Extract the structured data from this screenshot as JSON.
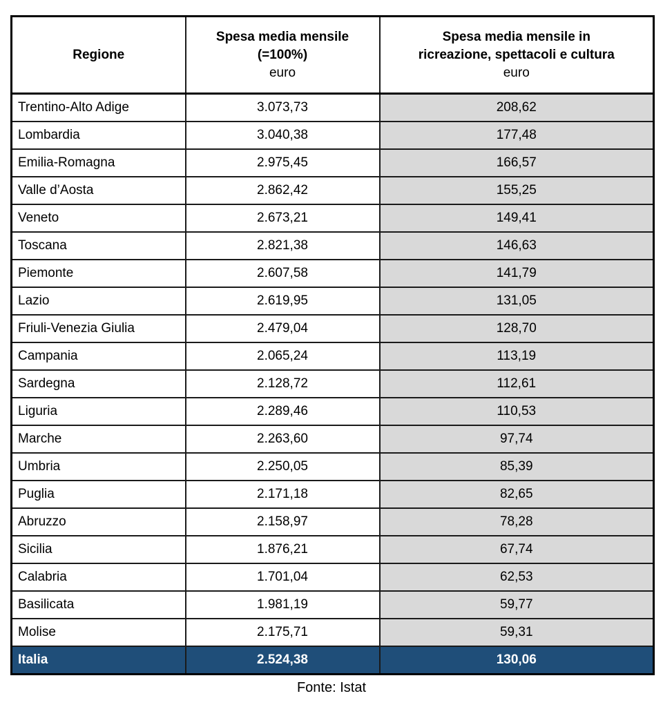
{
  "chart_data": {
    "type": "table",
    "title": "",
    "columns": [
      "Regione",
      "Spesa media mensile (=100%) euro",
      "Spesa media mensile in ricreazione, spettacoli e cultura euro"
    ],
    "header": {
      "col1": "Regione",
      "col2_line1": "Spesa media mensile",
      "col2_line2": "(=100%)",
      "col2_unit": "euro",
      "col3_line1": "Spesa media mensile in",
      "col3_line2": "ricreazione, spettacoli e cultura",
      "col3_unit": "euro"
    },
    "rows": [
      {
        "region": "Trentino-Alto Adige",
        "spesa_media": "3.073,73",
        "spesa_ricreazione": "208,62"
      },
      {
        "region": "Lombardia",
        "spesa_media": "3.040,38",
        "spesa_ricreazione": "177,48"
      },
      {
        "region": "Emilia-Romagna",
        "spesa_media": "2.975,45",
        "spesa_ricreazione": "166,57"
      },
      {
        "region": "Valle d’Aosta",
        "spesa_media": "2.862,42",
        "spesa_ricreazione": "155,25"
      },
      {
        "region": "Veneto",
        "spesa_media": "2.673,21",
        "spesa_ricreazione": "149,41"
      },
      {
        "region": "Toscana",
        "spesa_media": "2.821,38",
        "spesa_ricreazione": "146,63"
      },
      {
        "region": "Piemonte",
        "spesa_media": "2.607,58",
        "spesa_ricreazione": "141,79"
      },
      {
        "region": "Lazio",
        "spesa_media": "2.619,95",
        "spesa_ricreazione": "131,05"
      },
      {
        "region": "Friuli-Venezia Giulia",
        "spesa_media": "2.479,04",
        "spesa_ricreazione": "128,70"
      },
      {
        "region": "Campania",
        "spesa_media": "2.065,24",
        "spesa_ricreazione": "113,19"
      },
      {
        "region": "Sardegna",
        "spesa_media": "2.128,72",
        "spesa_ricreazione": "112,61"
      },
      {
        "region": "Liguria",
        "spesa_media": "2.289,46",
        "spesa_ricreazione": "110,53"
      },
      {
        "region": "Marche",
        "spesa_media": "2.263,60",
        "spesa_ricreazione": "97,74"
      },
      {
        "region": "Umbria",
        "spesa_media": "2.250,05",
        "spesa_ricreazione": "85,39"
      },
      {
        "region": "Puglia",
        "spesa_media": "2.171,18",
        "spesa_ricreazione": "82,65"
      },
      {
        "region": "Abruzzo",
        "spesa_media": "2.158,97",
        "spesa_ricreazione": "78,28"
      },
      {
        "region": "Sicilia",
        "spesa_media": "1.876,21",
        "spesa_ricreazione": "67,74"
      },
      {
        "region": "Calabria",
        "spesa_media": "1.701,04",
        "spesa_ricreazione": "62,53"
      },
      {
        "region": "Basilicata",
        "spesa_media": "1.981,19",
        "spesa_ricreazione": "59,77"
      },
      {
        "region": "Molise",
        "spesa_media": "2.175,71",
        "spesa_ricreazione": "59,31"
      }
    ],
    "total": {
      "region": "Italia",
      "spesa_media": "2.524,38",
      "spesa_ricreazione": "130,06"
    },
    "layout": {
      "shaded_column": "spesa_ricreazione",
      "total_row_highlighted": true,
      "grid": true
    }
  },
  "footer": {
    "source": "Fonte: Istat"
  },
  "colors": {
    "shade_gray": "#d9d9d9",
    "total_row_bg": "#1f4e79",
    "total_row_text": "#ffffff",
    "border": "#000000",
    "text": "#000000"
  }
}
